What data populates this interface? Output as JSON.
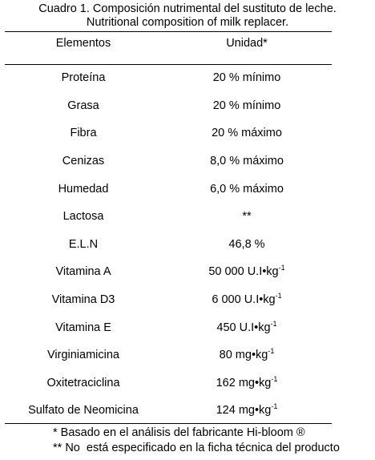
{
  "caption": {
    "spanish": "Cuadro 1. Composición nutrimental del sustituto de leche.",
    "english": "Nutritional composition of milk replacer."
  },
  "table": {
    "headers": {
      "element": "Elementos",
      "unit": "Unidad*"
    },
    "rows": [
      {
        "element": "Proteína",
        "value": "20 % mínimo",
        "sup": ""
      },
      {
        "element": "Grasa",
        "value": "20 % mínimo",
        "sup": ""
      },
      {
        "element": "Fibra",
        "value": "20 % máximo",
        "sup": ""
      },
      {
        "element": "Cenizas",
        "value": "8,0 % máximo",
        "sup": ""
      },
      {
        "element": "Humedad",
        "value": "6,0 % máximo",
        "sup": ""
      },
      {
        "element": "Lactosa",
        "value": "**",
        "sup": ""
      },
      {
        "element": "E.L.N",
        "value": "46,8 %",
        "sup": ""
      },
      {
        "element": "Vitamina A",
        "value": "50 000 U.I•kg",
        "sup": "-1"
      },
      {
        "element": "Vitamina D3",
        "value": "6 000 U.I•kg",
        "sup": "-1"
      },
      {
        "element": "Vitamina E",
        "value": "450 U.I•kg",
        "sup": "-1"
      },
      {
        "element": "Virginiamicina",
        "value": "80 mg•kg",
        "sup": "-1"
      },
      {
        "element": "Oxitetraciclina",
        "value": "162 mg•kg",
        "sup": "-1"
      },
      {
        "element": "Sulfato de Neomicina",
        "value": "124 mg•kg",
        "sup": "-1"
      }
    ]
  },
  "footnotes": {
    "first": "* Basado en el análisis del fabricante Hi-bloom ®",
    "second": "** No  está especificado en la ficha técnica del producto"
  }
}
